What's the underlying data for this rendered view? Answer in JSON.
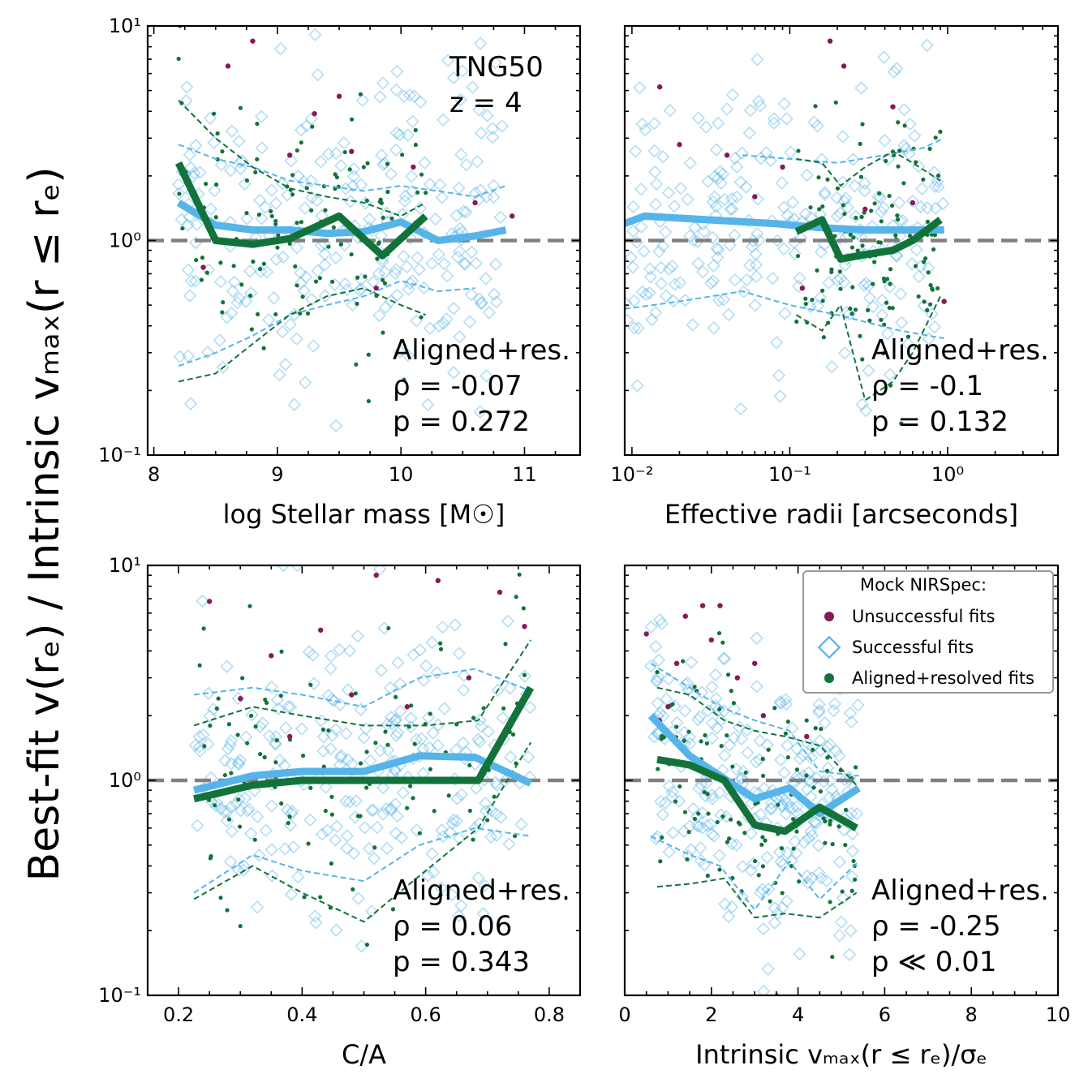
{
  "figure": {
    "ylabel": "Best-fit v(rₑ) / Intrinsic vₘₐₓ(r ≤ rₑ)",
    "legend": {
      "title": "Mock NIRSpec:",
      "items": [
        "Unsuccessful fits",
        "Successful fits",
        "Aligned+resolved fits"
      ]
    },
    "colors": {
      "unsuccessful": "#86195a",
      "successful": "#56b4e9",
      "aligned": "#12733a",
      "reference_line": "#808080"
    }
  },
  "chart_data": [
    {
      "id": "mass",
      "type": "scatter",
      "xlabel": "log Stellar mass [M☉]",
      "xscale": "linear",
      "xlim": [
        7.95,
        11.45
      ],
      "ylim": [
        0.1,
        10
      ],
      "yscale": "log",
      "xticks": [
        8,
        9,
        10,
        11
      ],
      "xtick_labels": [
        "8",
        "9",
        "10",
        "11"
      ],
      "yticks": [
        0.1,
        1,
        10
      ],
      "ytick_labels": [
        "10⁻¹",
        "10⁰",
        "10¹"
      ],
      "title_annotation": [
        "TNG50",
        "z = 4"
      ],
      "annotation": [
        "Aligned+res.",
        "ρ = -0.07",
        "p = 0.272"
      ],
      "median_successful": {
        "x": [
          8.2,
          8.5,
          8.8,
          9.1,
          9.4,
          9.7,
          10.0,
          10.3,
          10.6,
          10.85
        ],
        "y": [
          1.5,
          1.18,
          1.12,
          1.12,
          1.08,
          1.1,
          1.22,
          1.0,
          1.05,
          1.12
        ]
      },
      "median_aligned": {
        "x": [
          8.2,
          8.5,
          8.8,
          9.1,
          9.5,
          9.85,
          10.2
        ],
        "y": [
          2.3,
          1.0,
          0.96,
          1.02,
          1.3,
          0.85,
          1.3
        ]
      },
      "band_successful_upper": {
        "x": [
          8.2,
          8.5,
          8.8,
          9.1,
          9.4,
          9.7,
          10.0,
          10.3,
          10.6,
          10.85
        ],
        "y": [
          2.8,
          2.4,
          2.2,
          1.9,
          1.8,
          1.7,
          1.8,
          1.7,
          1.6,
          1.8
        ]
      },
      "band_successful_lower": {
        "x": [
          8.2,
          8.5,
          8.8,
          9.1,
          9.4,
          9.7,
          10.0,
          10.3,
          10.6
        ],
        "y": [
          0.26,
          0.3,
          0.36,
          0.45,
          0.5,
          0.55,
          0.65,
          0.58,
          0.6
        ]
      },
      "band_aligned_upper": {
        "x": [
          8.2,
          8.5,
          8.8,
          9.1,
          9.4,
          9.7,
          10.0,
          10.2
        ],
        "y": [
          4.5,
          3.0,
          2.2,
          1.75,
          1.6,
          1.5,
          1.3,
          1.5
        ]
      },
      "band_aligned_lower": {
        "x": [
          8.2,
          8.5,
          8.8,
          9.1,
          9.4,
          9.7,
          10.0,
          10.2
        ],
        "y": [
          0.22,
          0.24,
          0.33,
          0.45,
          0.55,
          0.6,
          0.5,
          0.45
        ]
      },
      "unsuccessful_points": {
        "x": [
          8.8,
          9.5,
          9.1,
          9.6,
          8.3,
          10.6,
          10.9,
          8.4,
          9.8,
          8.6,
          10.1,
          9.3
        ],
        "y": [
          8.5,
          4.7,
          2.5,
          2.6,
          1.4,
          1.5,
          1.3,
          0.75,
          0.6,
          6.5,
          2.2,
          3.9
        ]
      }
    },
    {
      "id": "radius",
      "type": "scatter",
      "xlabel": "Effective radii [arcseconds]",
      "xscale": "log",
      "xlim": [
        0.009,
        5
      ],
      "ylim": [
        0.1,
        10
      ],
      "yscale": "log",
      "xticks": [
        0.01,
        0.1,
        1
      ],
      "xtick_labels": [
        "10⁻²",
        "10⁻¹",
        "10⁰"
      ],
      "annotation": [
        "Aligned+res.",
        "ρ = -0.1",
        "p = 0.132"
      ],
      "median_successful": {
        "x": [
          0.009,
          0.012,
          0.03,
          0.08,
          0.15,
          0.3,
          0.6,
          0.95
        ],
        "y": [
          1.2,
          1.3,
          1.25,
          1.2,
          1.15,
          1.12,
          1.12,
          1.12
        ]
      },
      "median_aligned": {
        "x": [
          0.11,
          0.16,
          0.21,
          0.3,
          0.45,
          0.6,
          0.9
        ],
        "y": [
          1.1,
          1.25,
          0.82,
          0.86,
          0.9,
          1.0,
          1.25
        ]
      },
      "band_successful_upper": {
        "x": [
          0.05,
          0.1,
          0.2,
          0.4,
          0.7,
          0.95
        ],
        "y": [
          2.5,
          2.4,
          2.3,
          2.5,
          2.7,
          3.0
        ]
      },
      "band_successful_lower": {
        "x": [
          0.009,
          0.02,
          0.05,
          0.1,
          0.2,
          0.5,
          0.95
        ],
        "y": [
          0.48,
          0.52,
          0.58,
          0.5,
          0.45,
          0.38,
          0.35
        ]
      },
      "band_aligned_upper": {
        "x": [
          0.11,
          0.16,
          0.21,
          0.3,
          0.45,
          0.6,
          0.9
        ],
        "y": [
          2.4,
          2.3,
          1.8,
          2.2,
          2.6,
          2.3,
          1.9
        ]
      },
      "band_aligned_lower": {
        "x": [
          0.11,
          0.16,
          0.21,
          0.3,
          0.45,
          0.6,
          0.9
        ],
        "y": [
          0.45,
          0.38,
          0.5,
          0.18,
          0.22,
          0.3,
          0.55
        ]
      },
      "unsuccessful_points": {
        "x": [
          0.015,
          0.02,
          0.04,
          0.06,
          0.09,
          0.18,
          0.22,
          0.45,
          0.6,
          0.95,
          0.12,
          0.3
        ],
        "y": [
          5.2,
          2.8,
          2.5,
          1.6,
          2.2,
          8.5,
          6.5,
          4.2,
          1.5,
          0.52,
          0.6,
          1.4
        ]
      }
    },
    {
      "id": "ca",
      "type": "scatter",
      "xlabel": "C/A",
      "xscale": "linear",
      "xlim": [
        0.15,
        0.85
      ],
      "ylim": [
        0.1,
        10
      ],
      "yscale": "log",
      "xticks": [
        0.2,
        0.4,
        0.6,
        0.8
      ],
      "xtick_labels": [
        "0.2",
        "0.4",
        "0.6",
        "0.8"
      ],
      "yticks": [
        0.1,
        1,
        10
      ],
      "ytick_labels": [
        "10⁻¹",
        "10⁰",
        "10¹"
      ],
      "annotation": [
        "Aligned+res.",
        "ρ = 0.06",
        "p = 0.343"
      ],
      "median_successful": {
        "x": [
          0.225,
          0.32,
          0.4,
          0.5,
          0.59,
          0.68,
          0.77
        ],
        "y": [
          0.9,
          1.05,
          1.1,
          1.1,
          1.3,
          1.28,
          0.97
        ]
      },
      "median_aligned": {
        "x": [
          0.225,
          0.32,
          0.4,
          0.5,
          0.6,
          0.685,
          0.77
        ],
        "y": [
          0.82,
          0.95,
          1.0,
          1.0,
          1.0,
          1.0,
          2.7
        ]
      },
      "band_successful_upper": {
        "x": [
          0.225,
          0.32,
          0.4,
          0.5,
          0.59,
          0.68,
          0.77
        ],
        "y": [
          2.5,
          2.7,
          2.5,
          2.2,
          3.0,
          3.3,
          2.6
        ]
      },
      "band_successful_lower": {
        "x": [
          0.225,
          0.32,
          0.4,
          0.5,
          0.59,
          0.68,
          0.77
        ],
        "y": [
          0.3,
          0.45,
          0.38,
          0.34,
          0.5,
          0.6,
          0.55
        ]
      },
      "band_aligned_upper": {
        "x": [
          0.225,
          0.32,
          0.4,
          0.5,
          0.6,
          0.685,
          0.77
        ],
        "y": [
          1.8,
          2.2,
          2.0,
          1.8,
          1.8,
          1.9,
          4.5
        ]
      },
      "band_aligned_lower": {
        "x": [
          0.225,
          0.32,
          0.4,
          0.5,
          0.6,
          0.685,
          0.77
        ],
        "y": [
          0.28,
          0.4,
          0.3,
          0.22,
          0.38,
          0.6,
          1.5
        ]
      },
      "unsuccessful_points": {
        "x": [
          0.25,
          0.35,
          0.43,
          0.52,
          0.62,
          0.67,
          0.76,
          0.72,
          0.48,
          0.38,
          0.57,
          0.3
        ],
        "y": [
          6.8,
          3.8,
          5.0,
          9.0,
          8.5,
          3.0,
          5.2,
          7.5,
          2.5,
          1.6,
          2.2,
          2.4
        ]
      }
    },
    {
      "id": "vsigma",
      "type": "scatter",
      "xlabel": "Intrinsic vₘₐₓ(r ≤ rₑ)/σₑ",
      "xscale": "linear",
      "xlim": [
        0,
        10
      ],
      "ylim": [
        0.1,
        10
      ],
      "yscale": "log",
      "xticks": [
        0,
        2,
        4,
        6,
        8,
        10
      ],
      "xtick_labels": [
        "0",
        "2",
        "4",
        "6",
        "8",
        "10"
      ],
      "annotation": [
        "Aligned+res.",
        "ρ = -0.25",
        "p ≪ 0.01"
      ],
      "median_successful": {
        "x": [
          0.6,
          1.5,
          2.2,
          3.0,
          3.8,
          4.5,
          5.4
        ],
        "y": [
          2.0,
          1.3,
          1.05,
          0.82,
          0.92,
          0.7,
          0.92
        ]
      },
      "median_aligned": {
        "x": [
          0.75,
          1.5,
          2.3,
          3.0,
          3.7,
          4.5,
          5.35
        ],
        "y": [
          1.25,
          1.18,
          1.0,
          0.62,
          0.58,
          0.75,
          0.6
        ]
      },
      "band_successful_upper": {
        "x": [
          0.6,
          1.5,
          2.2,
          3.0,
          3.8,
          4.5,
          5.4
        ],
        "y": [
          3.5,
          2.7,
          2.2,
          1.9,
          1.7,
          1.1,
          1.05
        ]
      },
      "band_successful_lower": {
        "x": [
          0.6,
          1.5,
          2.2,
          3.0,
          3.8,
          4.5,
          5.4
        ],
        "y": [
          0.55,
          0.45,
          0.4,
          0.25,
          0.42,
          0.28,
          0.42
        ]
      },
      "band_aligned_upper": {
        "x": [
          0.75,
          1.5,
          2.3,
          3.0,
          3.7,
          4.5,
          5.35
        ],
        "y": [
          2.7,
          2.5,
          1.9,
          1.7,
          1.6,
          1.45,
          0.95
        ]
      },
      "band_aligned_lower": {
        "x": [
          0.75,
          1.5,
          2.3,
          3.0,
          3.7,
          4.5,
          5.35
        ],
        "y": [
          0.32,
          0.33,
          0.35,
          0.23,
          0.24,
          0.23,
          0.3
        ]
      },
      "unsuccessful_points": {
        "x": [
          0.5,
          1.2,
          1.8,
          2.0,
          2.2,
          2.6,
          3.2,
          4.2,
          1.0,
          1.4,
          3.0,
          0.8
        ],
        "y": [
          4.8,
          3.5,
          6.5,
          4.5,
          6.5,
          3.0,
          2.0,
          1.6,
          2.2,
          5.8,
          3.5,
          1.9
        ]
      }
    }
  ]
}
